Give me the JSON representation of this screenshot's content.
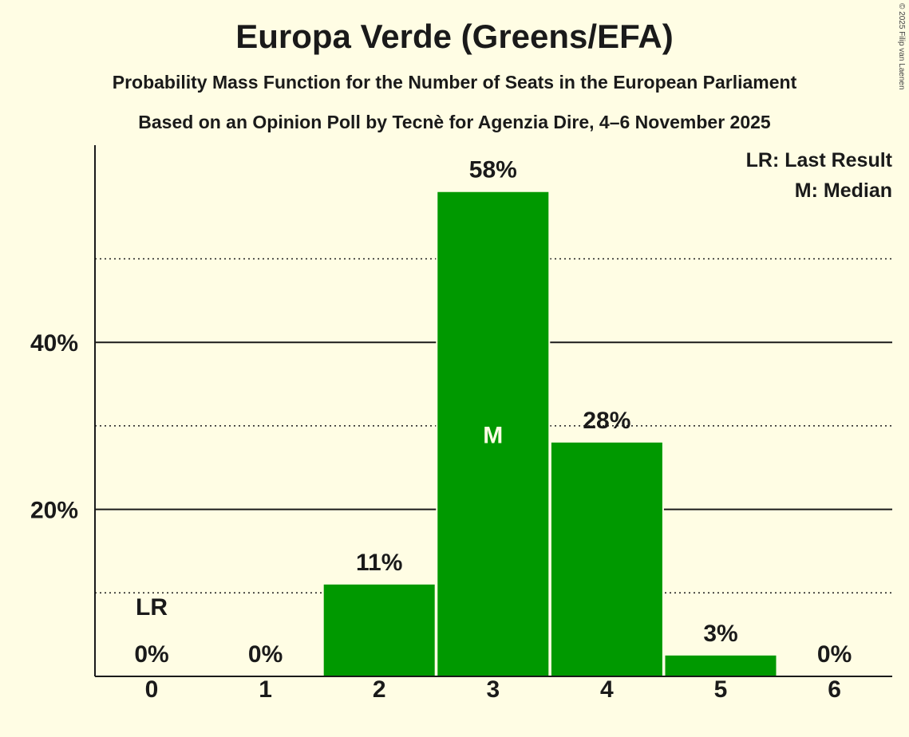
{
  "copyright": "© 2025 Filip van Laenen",
  "chart_data": {
    "type": "bar",
    "title": "Europa Verde (Greens/EFA)",
    "subtitle": "Probability Mass Function for the Number of Seats in the European Parliament",
    "subtitle2": "Based on an Opinion Poll by Tecnè for Agenzia Dire, 4–6 November 2025",
    "categories": [
      "0",
      "1",
      "2",
      "3",
      "4",
      "5",
      "6"
    ],
    "values": [
      0,
      0,
      11,
      58,
      28,
      3,
      0
    ],
    "bar_heights": [
      0,
      0,
      11,
      58,
      28,
      2.5,
      0
    ],
    "value_labels": [
      "0%",
      "0%",
      "11%",
      "58%",
      "28%",
      "3%",
      "0%"
    ],
    "ylim": [
      0,
      63
    ],
    "y_ticks": [
      20,
      40
    ],
    "y_tick_labels": [
      "20%",
      "40%"
    ],
    "y_minor_ticks": [
      10,
      30,
      50
    ],
    "bar_color": "#009900",
    "last_result_index": 0,
    "last_result_label": "LR",
    "median_index": 3,
    "median_label": "M",
    "legend": [
      "LR: Last Result",
      "M: Median"
    ],
    "legend_position": "top-right"
  }
}
